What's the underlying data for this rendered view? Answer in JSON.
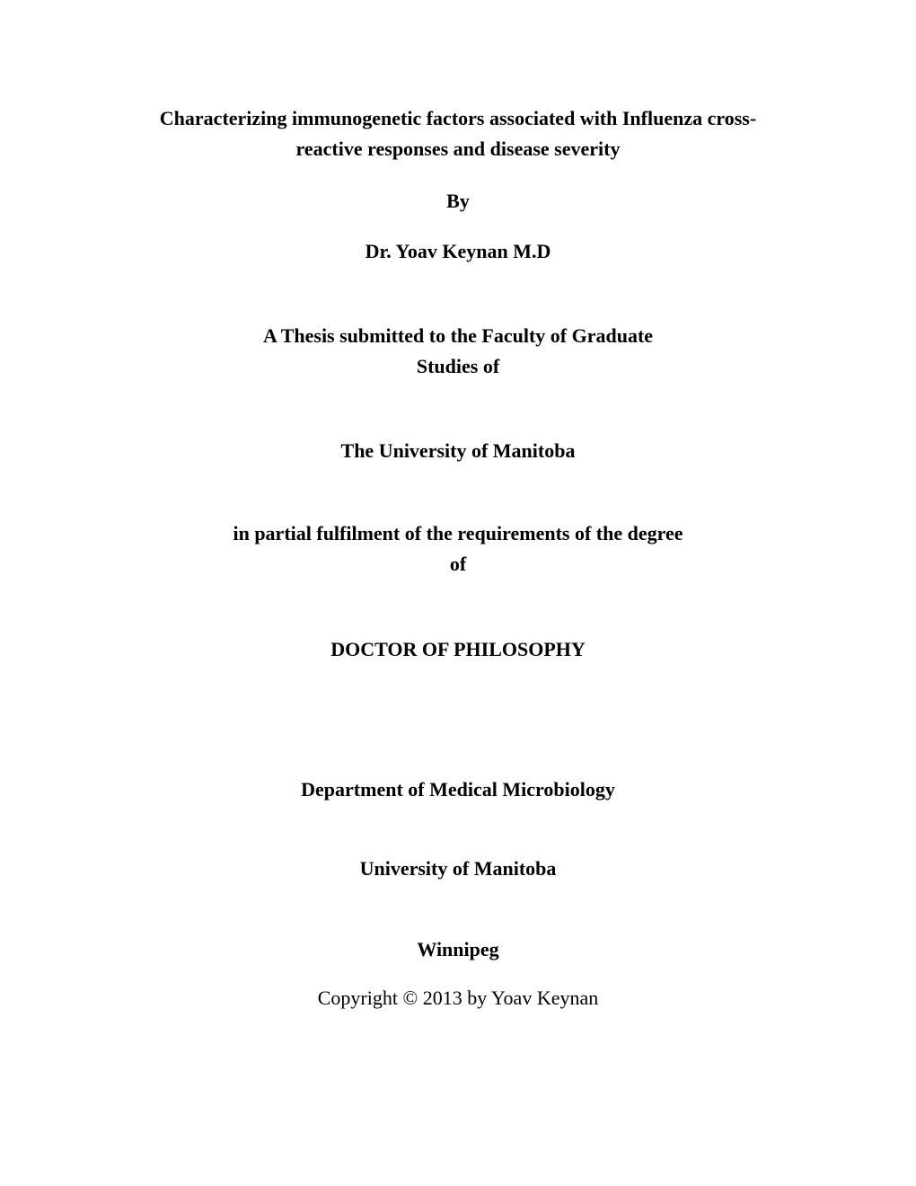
{
  "title_line1": "Characterizing immunogenetic factors associated with Influenza cross-",
  "title_line2": "reactive responses and disease severity",
  "by": "By",
  "author": "Dr. Yoav Keynan M.D",
  "submitted_line1": "A Thesis submitted to the Faculty of Graduate",
  "submitted_line2": "Studies of",
  "university1": "The University of Manitoba",
  "fulfilment_line1": "in partial fulfilment of the requirements of the degree",
  "fulfilment_line2": "of",
  "degree": "DOCTOR OF PHILOSOPHY",
  "department": "Department of Medical Microbiology",
  "university2": "University of Manitoba",
  "city": "Winnipeg",
  "copyright": "Copyright © 2013 by Yoav Keynan"
}
